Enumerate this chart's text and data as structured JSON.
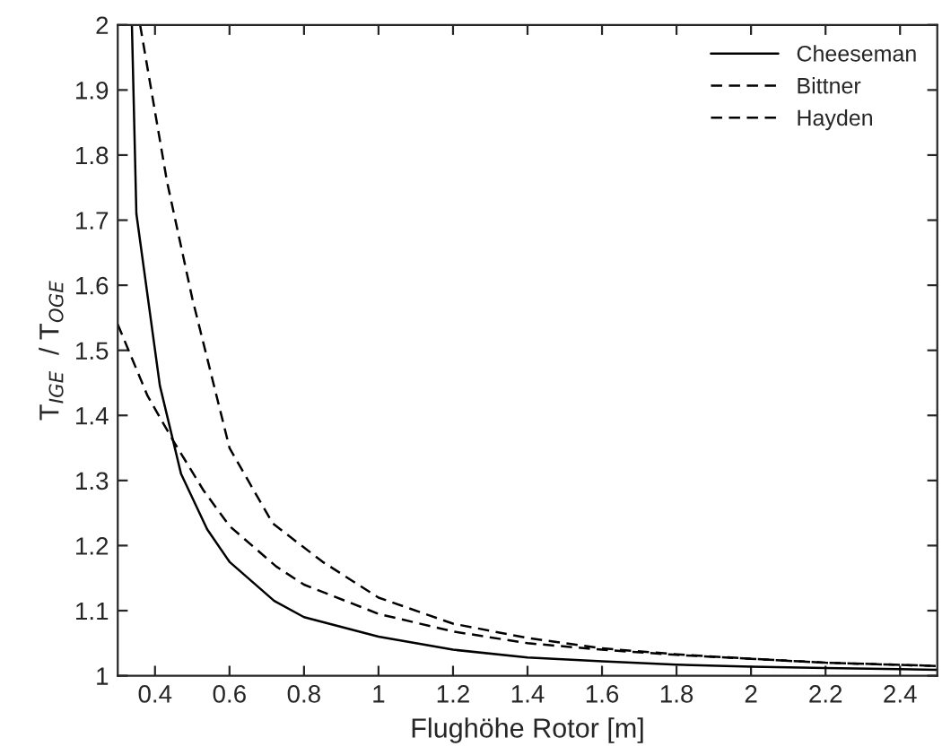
{
  "chart_data": {
    "type": "line",
    "xlabel": "Flughöhe Rotor [m]",
    "ylabel": "T$_{IGE}$  / T$_{OGE}$",
    "xlim": [
      0.3,
      2.5
    ],
    "xticks": [
      0.4,
      0.6,
      0.8,
      1,
      1.2,
      1.4,
      1.6,
      1.8,
      2,
      2.2,
      2.4
    ],
    "ylim": [
      1,
      2
    ],
    "yticks": [
      1,
      1.1,
      1.2,
      1.3,
      1.4,
      1.5,
      1.6,
      1.7,
      1.8,
      1.9,
      2
    ],
    "grid": false,
    "legend": "top right",
    "series": [
      {
        "name": "Cheeseman",
        "color": "#000000",
        "line_style": "solid",
        "x": [
          0.338,
          0.35,
          0.413,
          0.47,
          0.54,
          0.6,
          0.72,
          0.8,
          1.0,
          1.2,
          1.4,
          1.6,
          1.8,
          2.0,
          2.2,
          2.5
        ],
        "values": [
          2,
          1.71,
          1.446,
          1.31,
          1.225,
          1.175,
          1.115,
          1.09,
          1.06,
          1.04,
          1.028,
          1.022,
          1.017,
          1.014,
          1.012,
          1.009
        ]
      },
      {
        "name": "Bittner",
        "color": "#000000",
        "line_style": "dashed",
        "x": [
          0.3,
          0.38,
          0.45,
          0.53,
          0.6,
          0.725,
          0.8,
          1.0,
          1.2,
          1.4,
          1.6,
          1.8,
          2.0,
          2.2,
          2.5
        ],
        "values": [
          1.54,
          1.43,
          1.36,
          1.285,
          1.23,
          1.168,
          1.14,
          1.095,
          1.068,
          1.05,
          1.04,
          1.032,
          1.026,
          1.02,
          1.015
        ]
      },
      {
        "name": "Hayden",
        "color": "#000000",
        "line_style": "dashed",
        "x": [
          0.36,
          0.432,
          0.5,
          0.6,
          0.716,
          0.85,
          1.0,
          1.2,
          1.4,
          1.6,
          1.8,
          2.0,
          2.2,
          2.5
        ],
        "values": [
          2,
          1.76,
          1.58,
          1.35,
          1.234,
          1.175,
          1.12,
          1.08,
          1.058,
          1.042,
          1.033,
          1.026,
          1.02,
          1.015
        ]
      }
    ]
  }
}
